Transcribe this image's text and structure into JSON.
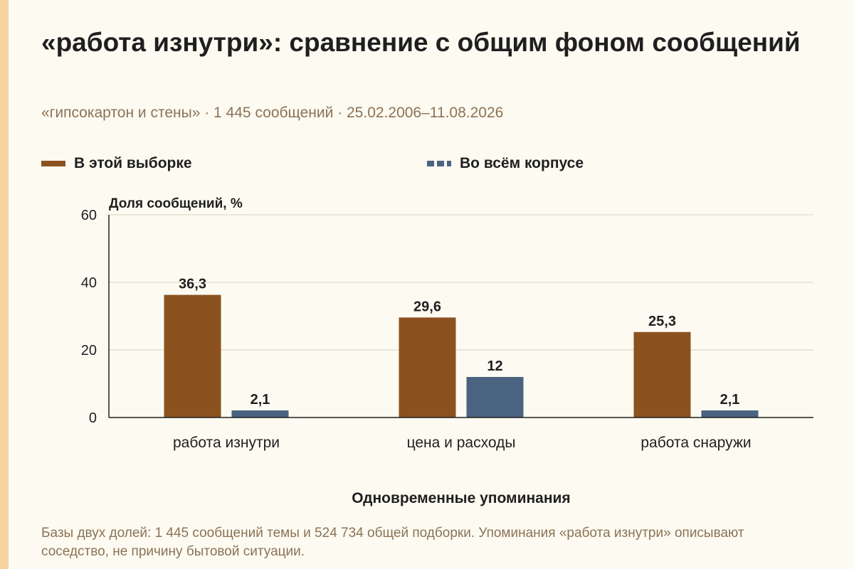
{
  "title": "«работа изнутри»: сравнение с общим фоном сообщений",
  "subtitle": "«гипсокартон и стены» · 1 445 сообщений · 25.02.2006–11.08.2026",
  "note": "Базы двух долей: 1 445 сообщений темы и 524 734 общей подборки. Упоминания «работа изнутри» описывают соседство, не причину бытовой ситуации.",
  "chart_data": {
    "type": "bar",
    "ylabel": "Доля сообщений, %",
    "xlabel": "Одновременные упоминания",
    "ylim": [
      0,
      60
    ],
    "yticks": [
      "0",
      "20",
      "40",
      "60"
    ],
    "grid": true,
    "legend_position": "top",
    "categories": [
      "работа изнутри",
      "цена и расходы",
      "работа снаружи"
    ],
    "series": [
      {
        "name": "В этой выборке",
        "color": "#8b5220",
        "values": [
          36.3,
          29.6,
          25.3
        ],
        "labels": [
          "36,3",
          "29,6",
          "25,3"
        ]
      },
      {
        "name": "Во всём корпусе",
        "color": "#4a6380",
        "values": [
          2.1,
          12,
          2.1
        ],
        "labels": [
          "2,1",
          "12",
          "2,1"
        ]
      }
    ]
  }
}
